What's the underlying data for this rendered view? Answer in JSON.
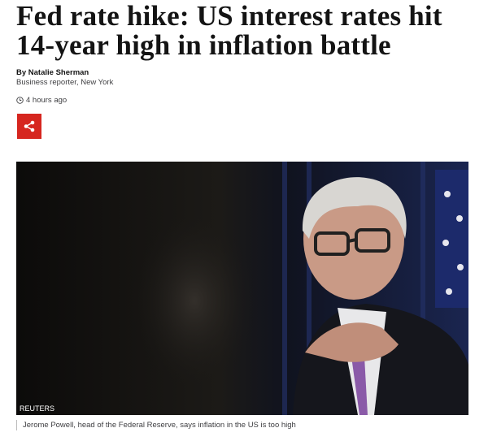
{
  "article": {
    "headline": "Fed rate hike: US interest rates hit 14-year high in inflation battle",
    "byline": {
      "author": "By Natalie Sherman",
      "role": "Business reporter, New York"
    },
    "timestamp": "4 hours ago",
    "image": {
      "credit": "REUTERS",
      "caption": "Jerome Powell, head of the Federal Reserve, says inflation in the US is too high"
    }
  }
}
